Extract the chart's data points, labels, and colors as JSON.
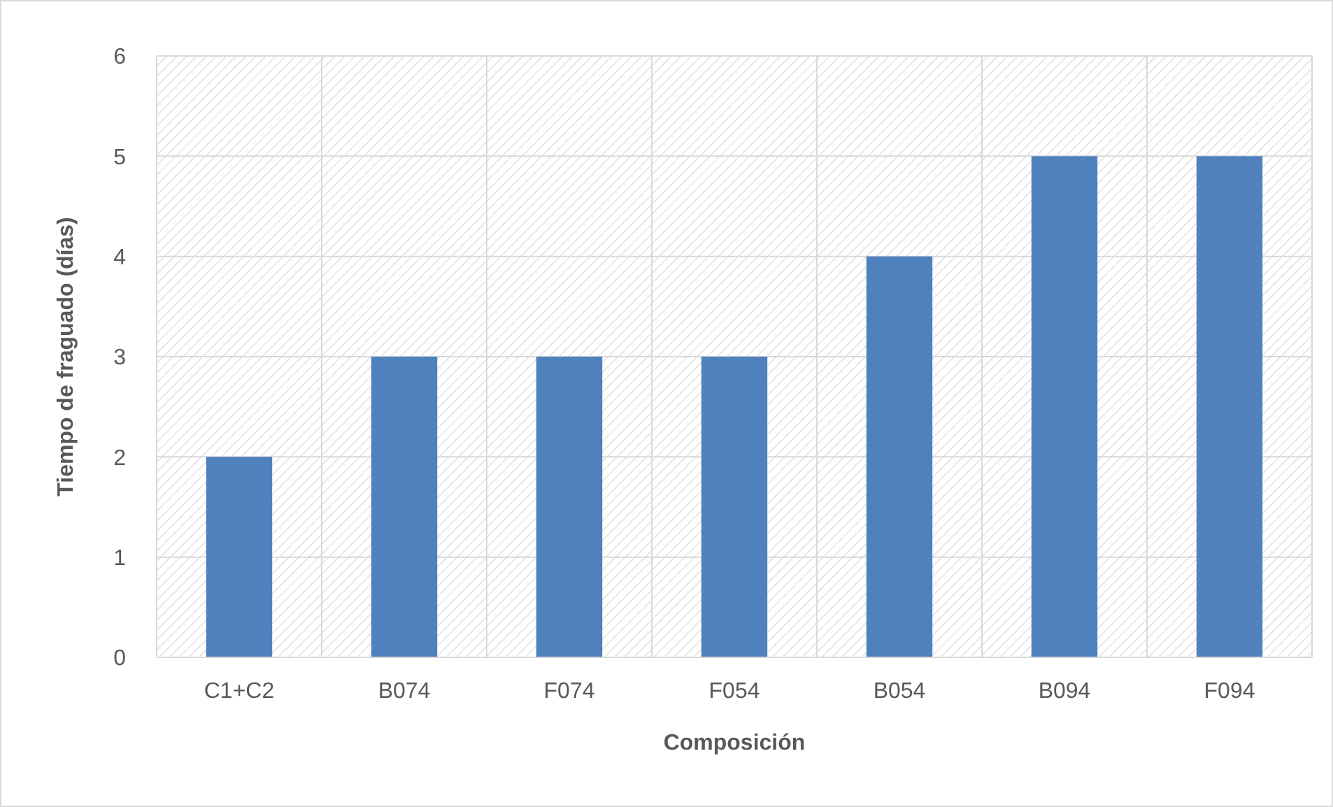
{
  "chart_data": {
    "type": "bar",
    "xlabel": "Composición",
    "ylabel": "Tiempo de fraguado (días)",
    "categories": [
      "C1+C2",
      "B074",
      "F074",
      "F054",
      "B054",
      "B094",
      "F094"
    ],
    "values": [
      2,
      3,
      3,
      3,
      4,
      5,
      5
    ],
    "color": "#4f81bd",
    "ylim": [
      0,
      6
    ],
    "yticks": [
      0,
      1,
      2,
      3,
      4,
      5,
      6
    ],
    "grid": true
  }
}
